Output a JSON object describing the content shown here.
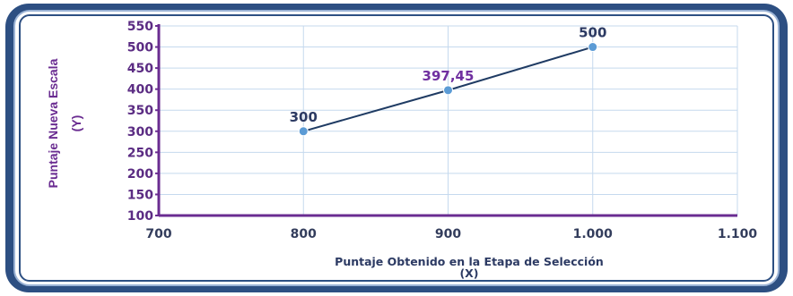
{
  "chart_data": {
    "type": "line",
    "x": [
      800,
      900,
      1000
    ],
    "x_tick_labels": [
      "700",
      "800",
      "900",
      "1.000",
      "1.100"
    ],
    "x_ticks": [
      700,
      800,
      900,
      1000,
      1100
    ],
    "xlim": [
      700,
      1100
    ],
    "y_ticks": [
      100,
      150,
      200,
      250,
      300,
      350,
      400,
      450,
      500,
      550
    ],
    "y_tick_labels": [
      "100",
      "150",
      "200",
      "250",
      "300",
      "350",
      "400",
      "450",
      "500",
      "550"
    ],
    "ylim": [
      100,
      550
    ],
    "series": [
      {
        "values": [
          300,
          397.45,
          500
        ],
        "data_labels": [
          "300",
          "397,45",
          "500"
        ]
      }
    ],
    "xlabel": "Puntaje Obtenido en la Etapa de Selección",
    "xlabel_sub": "(X)",
    "ylabel": "Puntaje Nueva Escala",
    "ylabel_sub": "(Y)",
    "grid": true,
    "colors": {
      "line": "#1f3b63",
      "marker": "#5b9bd5",
      "grid": "#c5d9ee",
      "y_axis": "#6a2c91",
      "label_dark": "#2c3a63",
      "label_purple": "#7030a0",
      "frame": "#2d4f82"
    },
    "data_label_colors": [
      "#2c3a63",
      "#7030a0",
      "#2c3a63"
    ]
  }
}
